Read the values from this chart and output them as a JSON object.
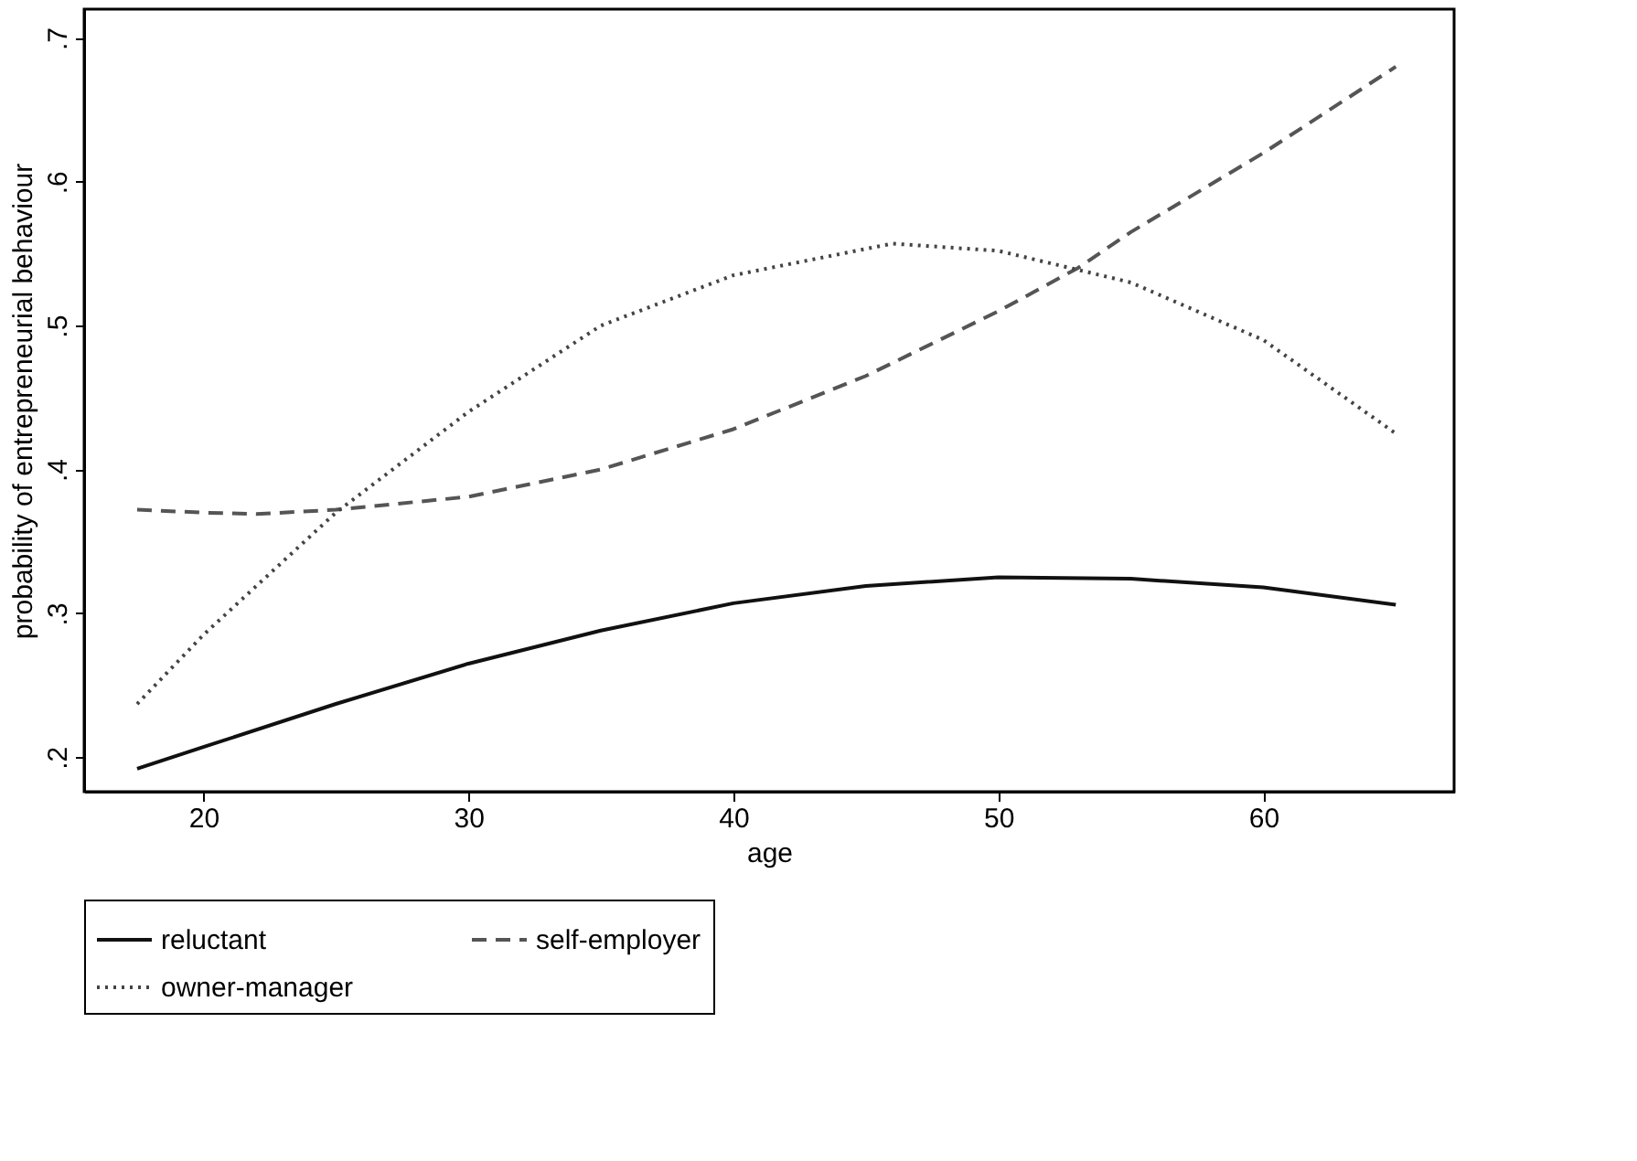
{
  "chart_data": {
    "type": "line",
    "xlabel": "age",
    "ylabel": "probability of entrepreneurial behaviour",
    "xlim": [
      15.5,
      67.2
    ],
    "xticks": [
      20,
      30,
      40,
      50,
      60
    ],
    "ylim": [
      0.176,
      0.72
    ],
    "yticks": [
      {
        "value": 0.2,
        "label": ".2"
      },
      {
        "value": 0.3,
        "label": ".3"
      },
      {
        "value": 0.4,
        "label": ".4"
      },
      {
        "value": 0.5,
        "label": ".5"
      },
      {
        "value": 0.6,
        "label": ".6"
      },
      {
        "value": 0.7,
        "label": ".7"
      }
    ],
    "grid": false,
    "legend": "bottom",
    "marker": "none",
    "series": [
      {
        "name": "reluctant",
        "color": "#111111",
        "line_style": "solid",
        "x": [
          17.5,
          20,
          25,
          30,
          35,
          40,
          45,
          50,
          55,
          60,
          65
        ],
        "values": [
          0.192,
          0.207,
          0.237,
          0.265,
          0.288,
          0.307,
          0.319,
          0.325,
          0.324,
          0.318,
          0.306
        ]
      },
      {
        "name": "self-employer",
        "color": "#555555",
        "line_style": "dashed",
        "x": [
          17.5,
          20,
          22,
          25,
          30,
          35,
          40,
          45,
          50,
          53,
          55,
          60,
          65
        ],
        "values": [
          0.372,
          0.37,
          0.369,
          0.372,
          0.381,
          0.4,
          0.428,
          0.465,
          0.51,
          0.54,
          0.565,
          0.62,
          0.68
        ]
      },
      {
        "name": "owner-manager",
        "color": "#444444",
        "line_style": "dotted",
        "x": [
          17.5,
          20,
          25,
          30,
          35,
          40,
          46,
          50,
          55,
          60,
          65
        ],
        "values": [
          0.237,
          0.285,
          0.37,
          0.44,
          0.5,
          0.535,
          0.557,
          0.552,
          0.53,
          0.49,
          0.425
        ]
      }
    ]
  }
}
